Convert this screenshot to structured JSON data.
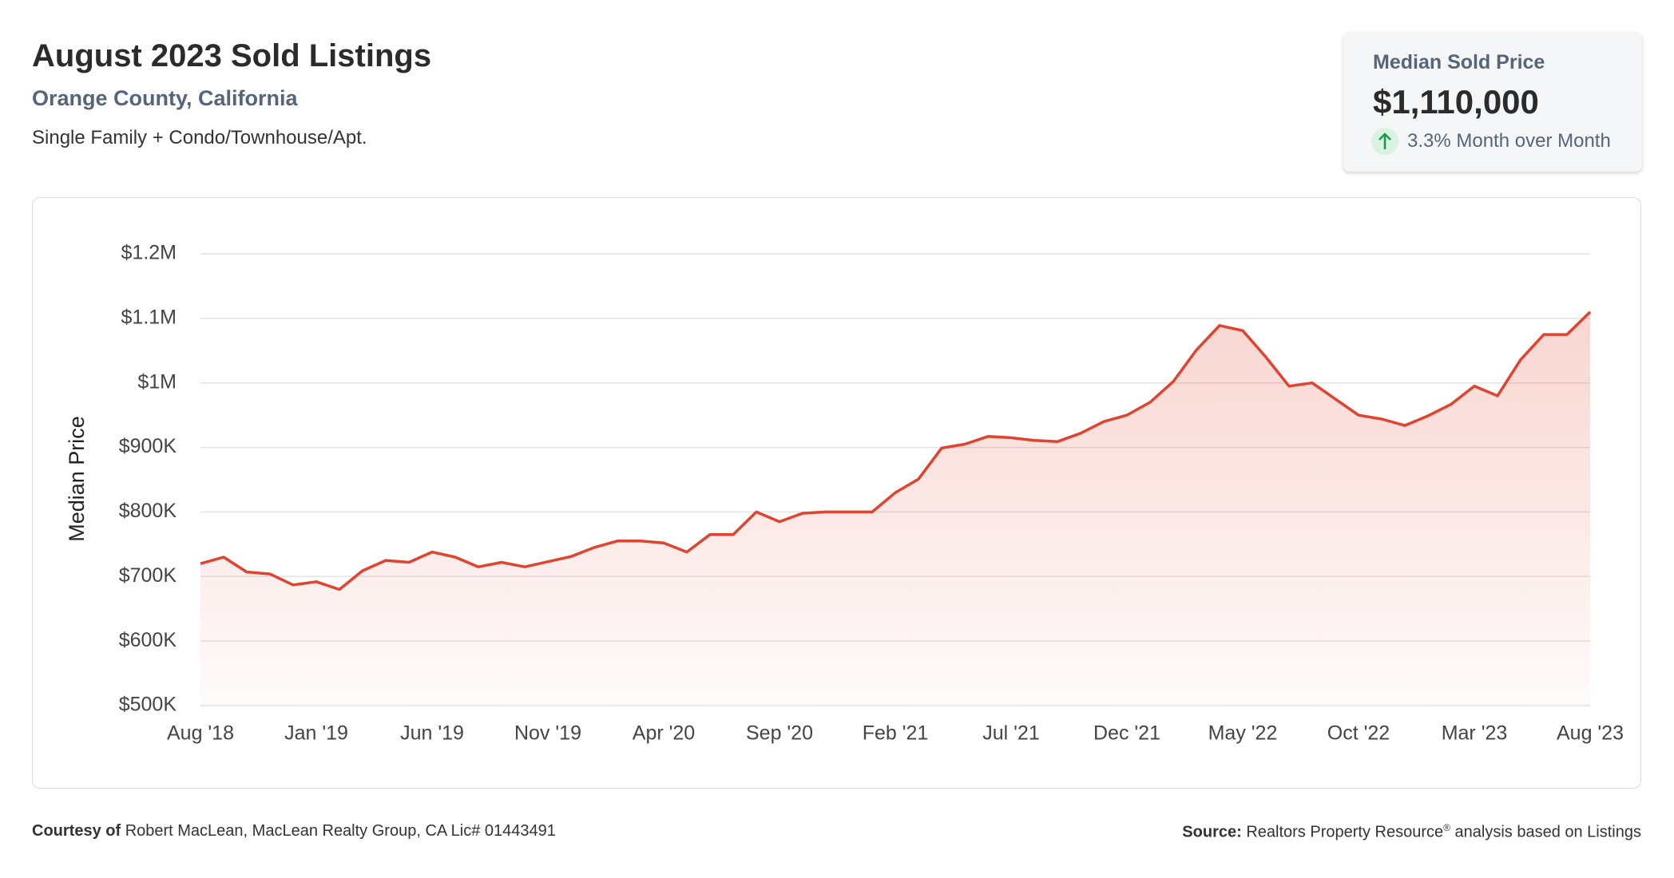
{
  "header": {
    "title": "August 2023 Sold Listings",
    "location": "Orange County, California",
    "property_types": "Single Family + Condo/Townhouse/Apt."
  },
  "summary_card": {
    "label": "Median Sold Price",
    "value": "$1,110,000",
    "change": "3.3% Month over Month"
  },
  "chart_data": {
    "type": "line",
    "y_label": "Median Price",
    "color": "#e0432e",
    "grid": true,
    "categories": [
      "Aug '18",
      null,
      null,
      null,
      null,
      "Jan '19",
      null,
      null,
      null,
      null,
      "Jun '19",
      null,
      null,
      null,
      null,
      "Nov '19",
      null,
      null,
      null,
      null,
      "Apr '20",
      null,
      null,
      null,
      null,
      "Sep '20",
      null,
      null,
      null,
      null,
      "Feb '21",
      null,
      null,
      null,
      null,
      "Jul '21",
      null,
      null,
      null,
      null,
      "Dec '21",
      null,
      null,
      null,
      null,
      "May '22",
      null,
      null,
      null,
      null,
      "Oct '22",
      null,
      null,
      null,
      null,
      "Mar '23",
      null,
      null,
      null,
      null,
      "Aug '23"
    ],
    "series": [
      {
        "name": "Median Price",
        "color": "#e0432e",
        "values": [
          720000,
          730000,
          707000,
          704000,
          687000,
          692000,
          680000,
          709000,
          725000,
          722000,
          738000,
          730000,
          715000,
          722000,
          715000,
          723000,
          731000,
          745000,
          755000,
          755000,
          752000,
          738000,
          765000,
          765000,
          800000,
          785000,
          798000,
          800000,
          800000,
          800000,
          830000,
          851000,
          899000,
          905000,
          917000,
          915000,
          911000,
          909000,
          922000,
          940000,
          950000,
          970000,
          1002000,
          1051000,
          1089000,
          1081000,
          1040000,
          995000,
          1000000,
          975000,
          950000,
          944000,
          934000,
          949000,
          967000,
          995000,
          980000,
          1036000,
          1075000,
          1075000,
          1110000
        ]
      }
    ],
    "ylim": [
      500000,
      1200000
    ],
    "yticks": [
      {
        "value": 500000,
        "label": "$500K"
      },
      {
        "value": 600000,
        "label": "$600K"
      },
      {
        "value": 700000,
        "label": "$700K"
      },
      {
        "value": 800000,
        "label": "$800K"
      },
      {
        "value": 900000,
        "label": "$900K"
      },
      {
        "value": 1000000,
        "label": "$1M"
      },
      {
        "value": 1100000,
        "label": "$1.1M"
      },
      {
        "value": 1200000,
        "label": "$1.2M"
      }
    ]
  },
  "footer": {
    "courtesy_label": "Courtesy of",
    "courtesy_text": "Robert MacLean, MacLean Realty Group, CA Lic# 01443491",
    "source_label": "Source:",
    "source_text": "Realtors Property Resource",
    "source_mark": "®",
    "source_rest": " analysis based on Listings"
  }
}
